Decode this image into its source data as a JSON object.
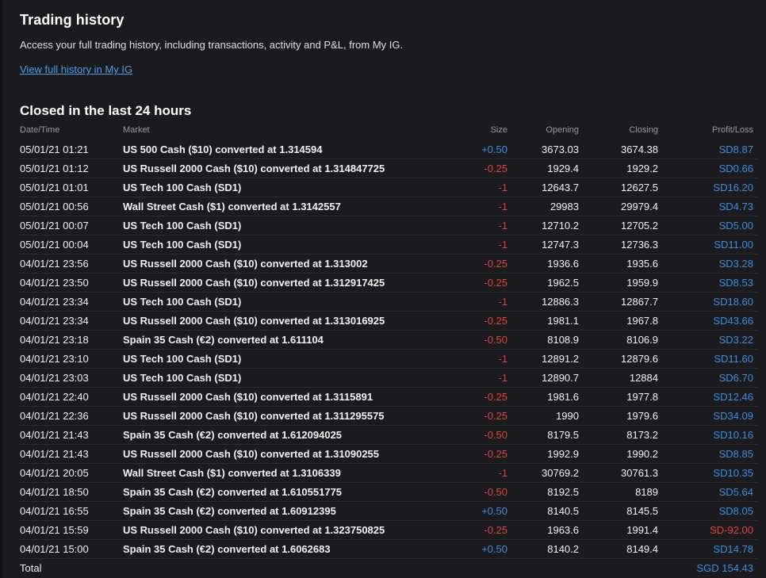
{
  "header": {
    "title": "Trading history",
    "description": "Access your full trading history, including transactions, activity and P&L, from My IG.",
    "link_label": "View full history in My IG"
  },
  "section_title": "Closed in the last 24 hours",
  "columns": {
    "datetime": "Date/Time",
    "market": "Market",
    "size": "Size",
    "opening": "Opening",
    "closing": "Closing",
    "pl": "Profit/Loss"
  },
  "colors": {
    "positive": "#3c8ee0",
    "negative": "#e0423a",
    "link": "#4e9ee6",
    "background": "#1b1b1f"
  },
  "rows": [
    {
      "datetime": "05/01/21 01:21",
      "market": "US 500 Cash ($10) converted at 1.314594",
      "size": "+0.50",
      "size_sign": "pos",
      "opening": "3673.03",
      "closing": "3674.38",
      "pl": "SD8.87",
      "pl_sign": "pos"
    },
    {
      "datetime": "05/01/21 01:12",
      "market": "US Russell 2000 Cash ($10) converted at 1.314847725",
      "size": "-0.25",
      "size_sign": "neg",
      "opening": "1929.4",
      "closing": "1929.2",
      "pl": "SD0.66",
      "pl_sign": "pos"
    },
    {
      "datetime": "05/01/21 01:01",
      "market": "US Tech 100 Cash (SD1)",
      "size": "-1",
      "size_sign": "neg",
      "opening": "12643.7",
      "closing": "12627.5",
      "pl": "SD16.20",
      "pl_sign": "pos"
    },
    {
      "datetime": "05/01/21 00:56",
      "market": "Wall Street Cash ($1) converted at 1.3142557",
      "size": "-1",
      "size_sign": "neg",
      "opening": "29983",
      "closing": "29979.4",
      "pl": "SD4.73",
      "pl_sign": "pos"
    },
    {
      "datetime": "05/01/21 00:07",
      "market": "US Tech 100 Cash (SD1)",
      "size": "-1",
      "size_sign": "neg",
      "opening": "12710.2",
      "closing": "12705.2",
      "pl": "SD5.00",
      "pl_sign": "pos"
    },
    {
      "datetime": "05/01/21 00:04",
      "market": "US Tech 100 Cash (SD1)",
      "size": "-1",
      "size_sign": "neg",
      "opening": "12747.3",
      "closing": "12736.3",
      "pl": "SD11.00",
      "pl_sign": "pos"
    },
    {
      "datetime": "04/01/21 23:56",
      "market": "US Russell 2000 Cash ($10) converted at 1.313002",
      "size": "-0.25",
      "size_sign": "neg",
      "opening": "1936.6",
      "closing": "1935.6",
      "pl": "SD3.28",
      "pl_sign": "pos"
    },
    {
      "datetime": "04/01/21 23:50",
      "market": "US Russell 2000 Cash ($10) converted at 1.312917425",
      "size": "-0.25",
      "size_sign": "neg",
      "opening": "1962.5",
      "closing": "1959.9",
      "pl": "SD8.53",
      "pl_sign": "pos"
    },
    {
      "datetime": "04/01/21 23:34",
      "market": "US Tech 100 Cash (SD1)",
      "size": "-1",
      "size_sign": "neg",
      "opening": "12886.3",
      "closing": "12867.7",
      "pl": "SD18.60",
      "pl_sign": "pos"
    },
    {
      "datetime": "04/01/21 23:34",
      "market": "US Russell 2000 Cash ($10) converted at 1.313016925",
      "size": "-0.25",
      "size_sign": "neg",
      "opening": "1981.1",
      "closing": "1967.8",
      "pl": "SD43.66",
      "pl_sign": "pos"
    },
    {
      "datetime": "04/01/21 23:18",
      "market": "Spain 35 Cash (€2) converted at 1.611104",
      "size": "-0.50",
      "size_sign": "neg",
      "opening": "8108.9",
      "closing": "8106.9",
      "pl": "SD3.22",
      "pl_sign": "pos"
    },
    {
      "datetime": "04/01/21 23:10",
      "market": "US Tech 100 Cash (SD1)",
      "size": "-1",
      "size_sign": "neg",
      "opening": "12891.2",
      "closing": "12879.6",
      "pl": "SD11.60",
      "pl_sign": "pos"
    },
    {
      "datetime": "04/01/21 23:03",
      "market": "US Tech 100 Cash (SD1)",
      "size": "-1",
      "size_sign": "neg",
      "opening": "12890.7",
      "closing": "12884",
      "pl": "SD6.70",
      "pl_sign": "pos"
    },
    {
      "datetime": "04/01/21 22:40",
      "market": "US Russell 2000 Cash ($10) converted at 1.3115891",
      "size": "-0.25",
      "size_sign": "neg",
      "opening": "1981.6",
      "closing": "1977.8",
      "pl": "SD12.46",
      "pl_sign": "pos"
    },
    {
      "datetime": "04/01/21 22:36",
      "market": "US Russell 2000 Cash ($10) converted at 1.311295575",
      "size": "-0.25",
      "size_sign": "neg",
      "opening": "1990",
      "closing": "1979.6",
      "pl": "SD34.09",
      "pl_sign": "pos"
    },
    {
      "datetime": "04/01/21 21:43",
      "market": "Spain 35 Cash (€2) converted at 1.612094025",
      "size": "-0.50",
      "size_sign": "neg",
      "opening": "8179.5",
      "closing": "8173.2",
      "pl": "SD10.16",
      "pl_sign": "pos"
    },
    {
      "datetime": "04/01/21 21:43",
      "market": "US Russell 2000 Cash ($10) converted at 1.31090255",
      "size": "-0.25",
      "size_sign": "neg",
      "opening": "1992.9",
      "closing": "1990.2",
      "pl": "SD8.85",
      "pl_sign": "pos"
    },
    {
      "datetime": "04/01/21 20:05",
      "market": "Wall Street Cash ($1) converted at 1.3106339",
      "size": "-1",
      "size_sign": "neg",
      "opening": "30769.2",
      "closing": "30761.3",
      "pl": "SD10.35",
      "pl_sign": "pos"
    },
    {
      "datetime": "04/01/21 18:50",
      "market": "Spain 35 Cash (€2) converted at 1.610551775",
      "size": "-0.50",
      "size_sign": "neg",
      "opening": "8192.5",
      "closing": "8189",
      "pl": "SD5.64",
      "pl_sign": "pos"
    },
    {
      "datetime": "04/01/21 16:55",
      "market": "Spain 35 Cash (€2) converted at 1.60912395",
      "size": "+0.50",
      "size_sign": "pos",
      "opening": "8140.5",
      "closing": "8145.5",
      "pl": "SD8.05",
      "pl_sign": "pos"
    },
    {
      "datetime": "04/01/21 15:59",
      "market": "US Russell 2000 Cash ($10) converted at 1.323750825",
      "size": "-0.25",
      "size_sign": "neg",
      "opening": "1963.6",
      "closing": "1991.4",
      "pl": "SD-92.00",
      "pl_sign": "neg"
    },
    {
      "datetime": "04/01/21 15:00",
      "market": "Spain 35 Cash (€2) converted at 1.6062683",
      "size": "+0.50",
      "size_sign": "pos",
      "opening": "8140.2",
      "closing": "8149.4",
      "pl": "SD14.78",
      "pl_sign": "pos"
    }
  ],
  "total": {
    "label": "Total",
    "value": "SGD 154.43"
  }
}
